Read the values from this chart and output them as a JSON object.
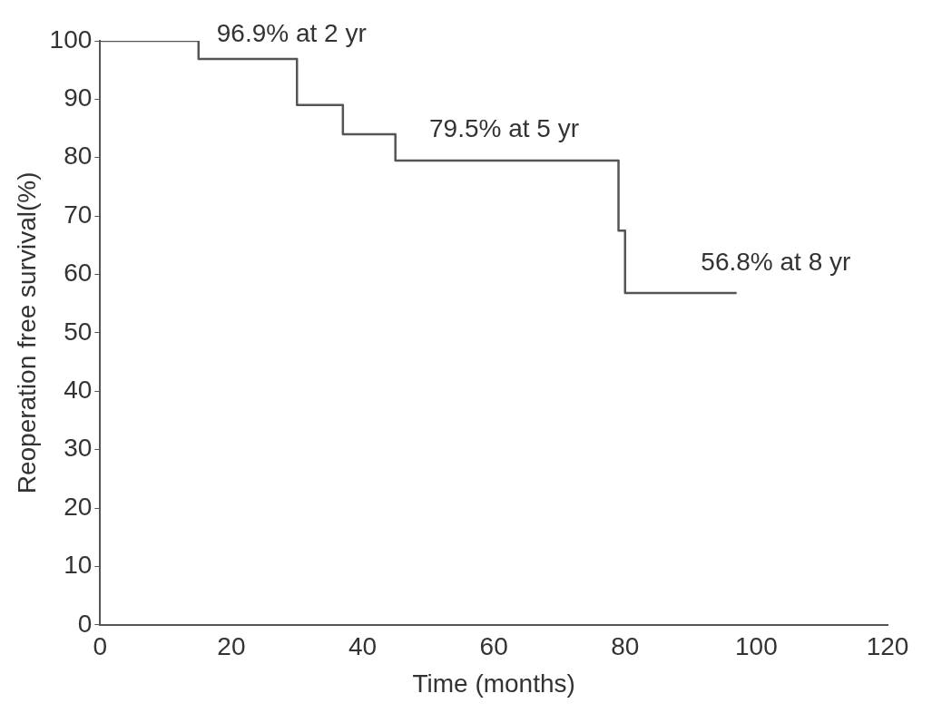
{
  "chart_data": {
    "type": "step",
    "xlabel": "Time (months)",
    "ylabel": "Reoperation free survival(%)",
    "x": [
      0,
      15,
      30,
      37,
      45,
      79,
      80,
      97
    ],
    "values": [
      100,
      96.9,
      89,
      84,
      79.5,
      67.5,
      56.8,
      56.8
    ],
    "color": "#555555",
    "xlim": [
      0,
      120
    ],
    "xticks": [
      0,
      20,
      40,
      60,
      80,
      100,
      120
    ],
    "ylim": [
      0,
      100
    ],
    "yticks": [
      0,
      10,
      20,
      30,
      40,
      50,
      60,
      70,
      80,
      90,
      100
    ],
    "grid": false,
    "legend": false,
    "marker": "none",
    "line_style": "solid",
    "annotations": [
      "96.9% at 2 yr",
      "79.5% at 5 yr",
      "56.8% at 8 yr"
    ]
  }
}
